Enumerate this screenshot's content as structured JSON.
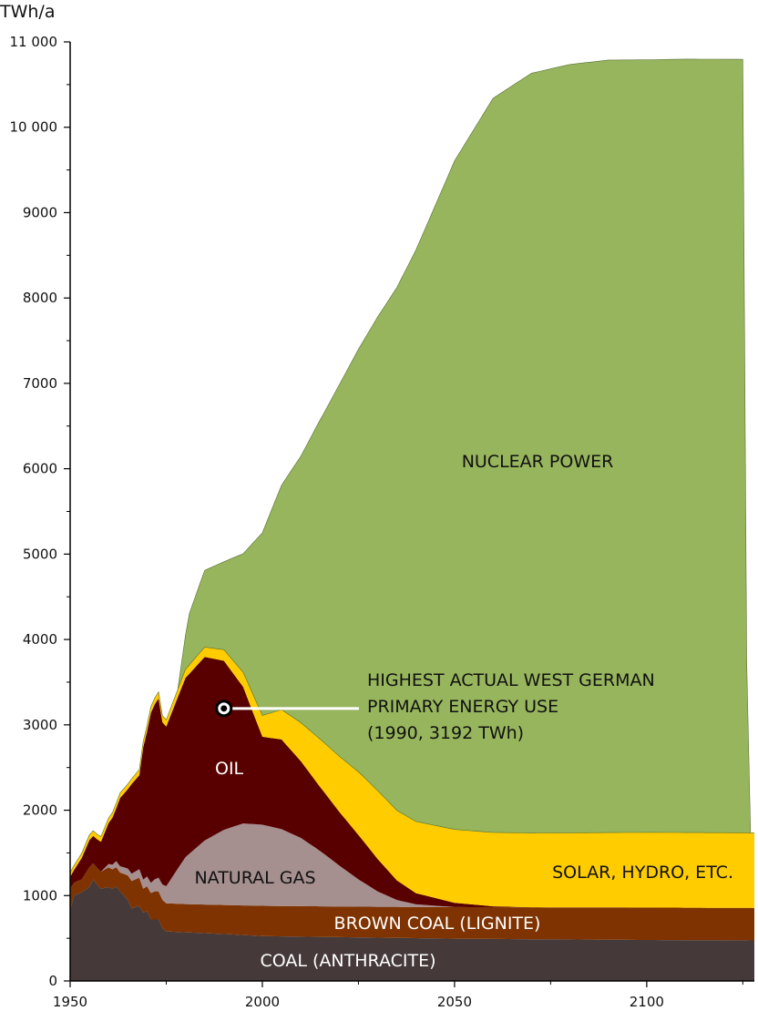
{
  "chart_data": {
    "type": "area",
    "stacked": true,
    "title": "",
    "xlabel": "",
    "ylabel": "TWh/a",
    "xlim": [
      1950,
      2128
    ],
    "ylim": [
      0,
      11000
    ],
    "x_ticks": [
      1950,
      2000,
      2050,
      2100
    ],
    "y_ticks": [
      {
        "value": 0,
        "label": "0"
      },
      {
        "value": 1000,
        "label": "1000"
      },
      {
        "value": 2000,
        "label": "2000"
      },
      {
        "value": 3000,
        "label": "3000"
      },
      {
        "value": 4000,
        "label": "4000"
      },
      {
        "value": 5000,
        "label": "5000"
      },
      {
        "value": 6000,
        "label": "6000"
      },
      {
        "value": 7000,
        "label": "7000"
      },
      {
        "value": 8000,
        "label": "8000"
      },
      {
        "value": 9000,
        "label": "9000"
      },
      {
        "value": 10000,
        "label": "10 000"
      },
      {
        "value": 11000,
        "label": "11 000"
      }
    ],
    "grid": false,
    "series_order": "bottom-to-top",
    "series": [
      {
        "name": "COAL (ANTHRACITE)",
        "color": "#45393a",
        "points": [
          [
            1950,
            830
          ],
          [
            1951,
            1000
          ],
          [
            1953,
            1040
          ],
          [
            1955,
            1100
          ],
          [
            1956,
            1190
          ],
          [
            1957,
            1130
          ],
          [
            1958,
            1080
          ],
          [
            1960,
            1100
          ],
          [
            1961,
            1080
          ],
          [
            1962,
            1110
          ],
          [
            1963,
            1050
          ],
          [
            1965,
            950
          ],
          [
            1966,
            850
          ],
          [
            1968,
            880
          ],
          [
            1969,
            800
          ],
          [
            1970,
            820
          ],
          [
            1971,
            720
          ],
          [
            1973,
            720
          ],
          [
            1974,
            620
          ],
          [
            1975,
            580
          ],
          [
            1980,
            570
          ],
          [
            1990,
            550
          ],
          [
            2000,
            525
          ],
          [
            2025,
            510
          ],
          [
            2050,
            495
          ],
          [
            2100,
            480
          ],
          [
            2128,
            475
          ]
        ]
      },
      {
        "name": "BROWN COAL (LIGNITE)",
        "color": "#7f3300",
        "points": [
          [
            1950,
            250
          ],
          [
            1951,
            150
          ],
          [
            1953,
            150
          ],
          [
            1955,
            230
          ],
          [
            1956,
            190
          ],
          [
            1958,
            200
          ],
          [
            1960,
            230
          ],
          [
            1963,
            220
          ],
          [
            1966,
            320
          ],
          [
            1968,
            330
          ],
          [
            1969,
            280
          ],
          [
            1970,
            290
          ],
          [
            1972,
            330
          ],
          [
            1974,
            330
          ],
          [
            1975,
            330
          ],
          [
            1980,
            330
          ],
          [
            1990,
            340
          ],
          [
            2000,
            355
          ],
          [
            2025,
            360
          ],
          [
            2050,
            370
          ],
          [
            2100,
            380
          ],
          [
            2128,
            380
          ]
        ]
      },
      {
        "name": "NATURAL GAS",
        "color": "#a68f8f",
        "points": [
          [
            1950,
            0
          ],
          [
            1958,
            0
          ],
          [
            1960,
            40
          ],
          [
            1962,
            70
          ],
          [
            1965,
            80
          ],
          [
            1968,
            100
          ],
          [
            1971,
            120
          ],
          [
            1975,
            200
          ],
          [
            1980,
            550
          ],
          [
            1985,
            750
          ],
          [
            1990,
            880
          ],
          [
            1995,
            960
          ],
          [
            2000,
            950
          ],
          [
            2005,
            900
          ],
          [
            2010,
            800
          ],
          [
            2015,
            650
          ],
          [
            2020,
            480
          ],
          [
            2025,
            320
          ],
          [
            2030,
            180
          ],
          [
            2035,
            80
          ],
          [
            2040,
            30
          ],
          [
            2050,
            0
          ],
          [
            2128,
            0
          ]
        ]
      },
      {
        "name": "OIL",
        "color": "#580000",
        "points": [
          [
            1950,
            140
          ],
          [
            1951,
            150
          ],
          [
            1953,
            250
          ],
          [
            1955,
            320
          ],
          [
            1956,
            320
          ],
          [
            1958,
            350
          ],
          [
            1960,
            480
          ],
          [
            1962,
            620
          ],
          [
            1963,
            800
          ],
          [
            1965,
            930
          ],
          [
            1966,
            1050
          ],
          [
            1968,
            1100
          ],
          [
            1969,
            1550
          ],
          [
            1970,
            1700
          ],
          [
            1971,
            1990
          ],
          [
            1972,
            2050
          ],
          [
            1973,
            2100
          ],
          [
            1974,
            1900
          ],
          [
            1975,
            1870
          ],
          [
            1980,
            2100
          ],
          [
            1985,
            2150
          ],
          [
            1990,
            1980
          ],
          [
            1995,
            1600
          ],
          [
            2000,
            1030
          ],
          [
            2005,
            1050
          ],
          [
            2010,
            900
          ],
          [
            2015,
            750
          ],
          [
            2020,
            630
          ],
          [
            2025,
            520
          ],
          [
            2030,
            380
          ],
          [
            2035,
            230
          ],
          [
            2040,
            130
          ],
          [
            2050,
            50
          ],
          [
            2060,
            10
          ],
          [
            2070,
            0
          ],
          [
            2128,
            0
          ]
        ]
      },
      {
        "name": "SOLAR, HYDRO, ETC.",
        "color": "#ffcc00",
        "points": [
          [
            1950,
            50
          ],
          [
            1955,
            60
          ],
          [
            1960,
            60
          ],
          [
            1965,
            60
          ],
          [
            1970,
            70
          ],
          [
            1975,
            80
          ],
          [
            1980,
            100
          ],
          [
            1990,
            130
          ],
          [
            1995,
            170
          ],
          [
            2000,
            250
          ],
          [
            2005,
            350
          ],
          [
            2010,
            450
          ],
          [
            2015,
            560
          ],
          [
            2020,
            650
          ],
          [
            2025,
            740
          ],
          [
            2030,
            800
          ],
          [
            2040,
            840
          ],
          [
            2050,
            860
          ],
          [
            2070,
            870
          ],
          [
            2100,
            880
          ],
          [
            2128,
            880
          ]
        ]
      },
      {
        "name": "NUCLEAR POWER",
        "color": "#97b55d",
        "points": [
          [
            1950,
            0
          ],
          [
            1975,
            0
          ],
          [
            1978,
            0
          ],
          [
            1981,
            600
          ],
          [
            1985,
            900
          ],
          [
            1990,
            1030
          ],
          [
            1995,
            1390
          ],
          [
            2000,
            2140
          ],
          [
            2010,
            3120
          ],
          [
            2020,
            4350
          ],
          [
            2030,
            5550
          ],
          [
            2040,
            6700
          ],
          [
            2050,
            7830
          ],
          [
            2060,
            8600
          ],
          [
            2070,
            8900
          ],
          [
            2080,
            9000
          ],
          [
            2090,
            9050
          ],
          [
            2100,
            9050
          ],
          [
            2110,
            9060
          ],
          [
            2125,
            9060
          ],
          [
            2126,
            2000
          ],
          [
            2127,
            0
          ],
          [
            2128,
            0
          ]
        ]
      }
    ],
    "annotations": [
      {
        "x": 1990,
        "y": 3192,
        "marker": "circle",
        "lines": [
          "HIGHEST ACTUAL WEST GERMAN",
          "PRIMARY ENERGY USE",
          "(1990, 3192 TWh)"
        ]
      }
    ]
  }
}
